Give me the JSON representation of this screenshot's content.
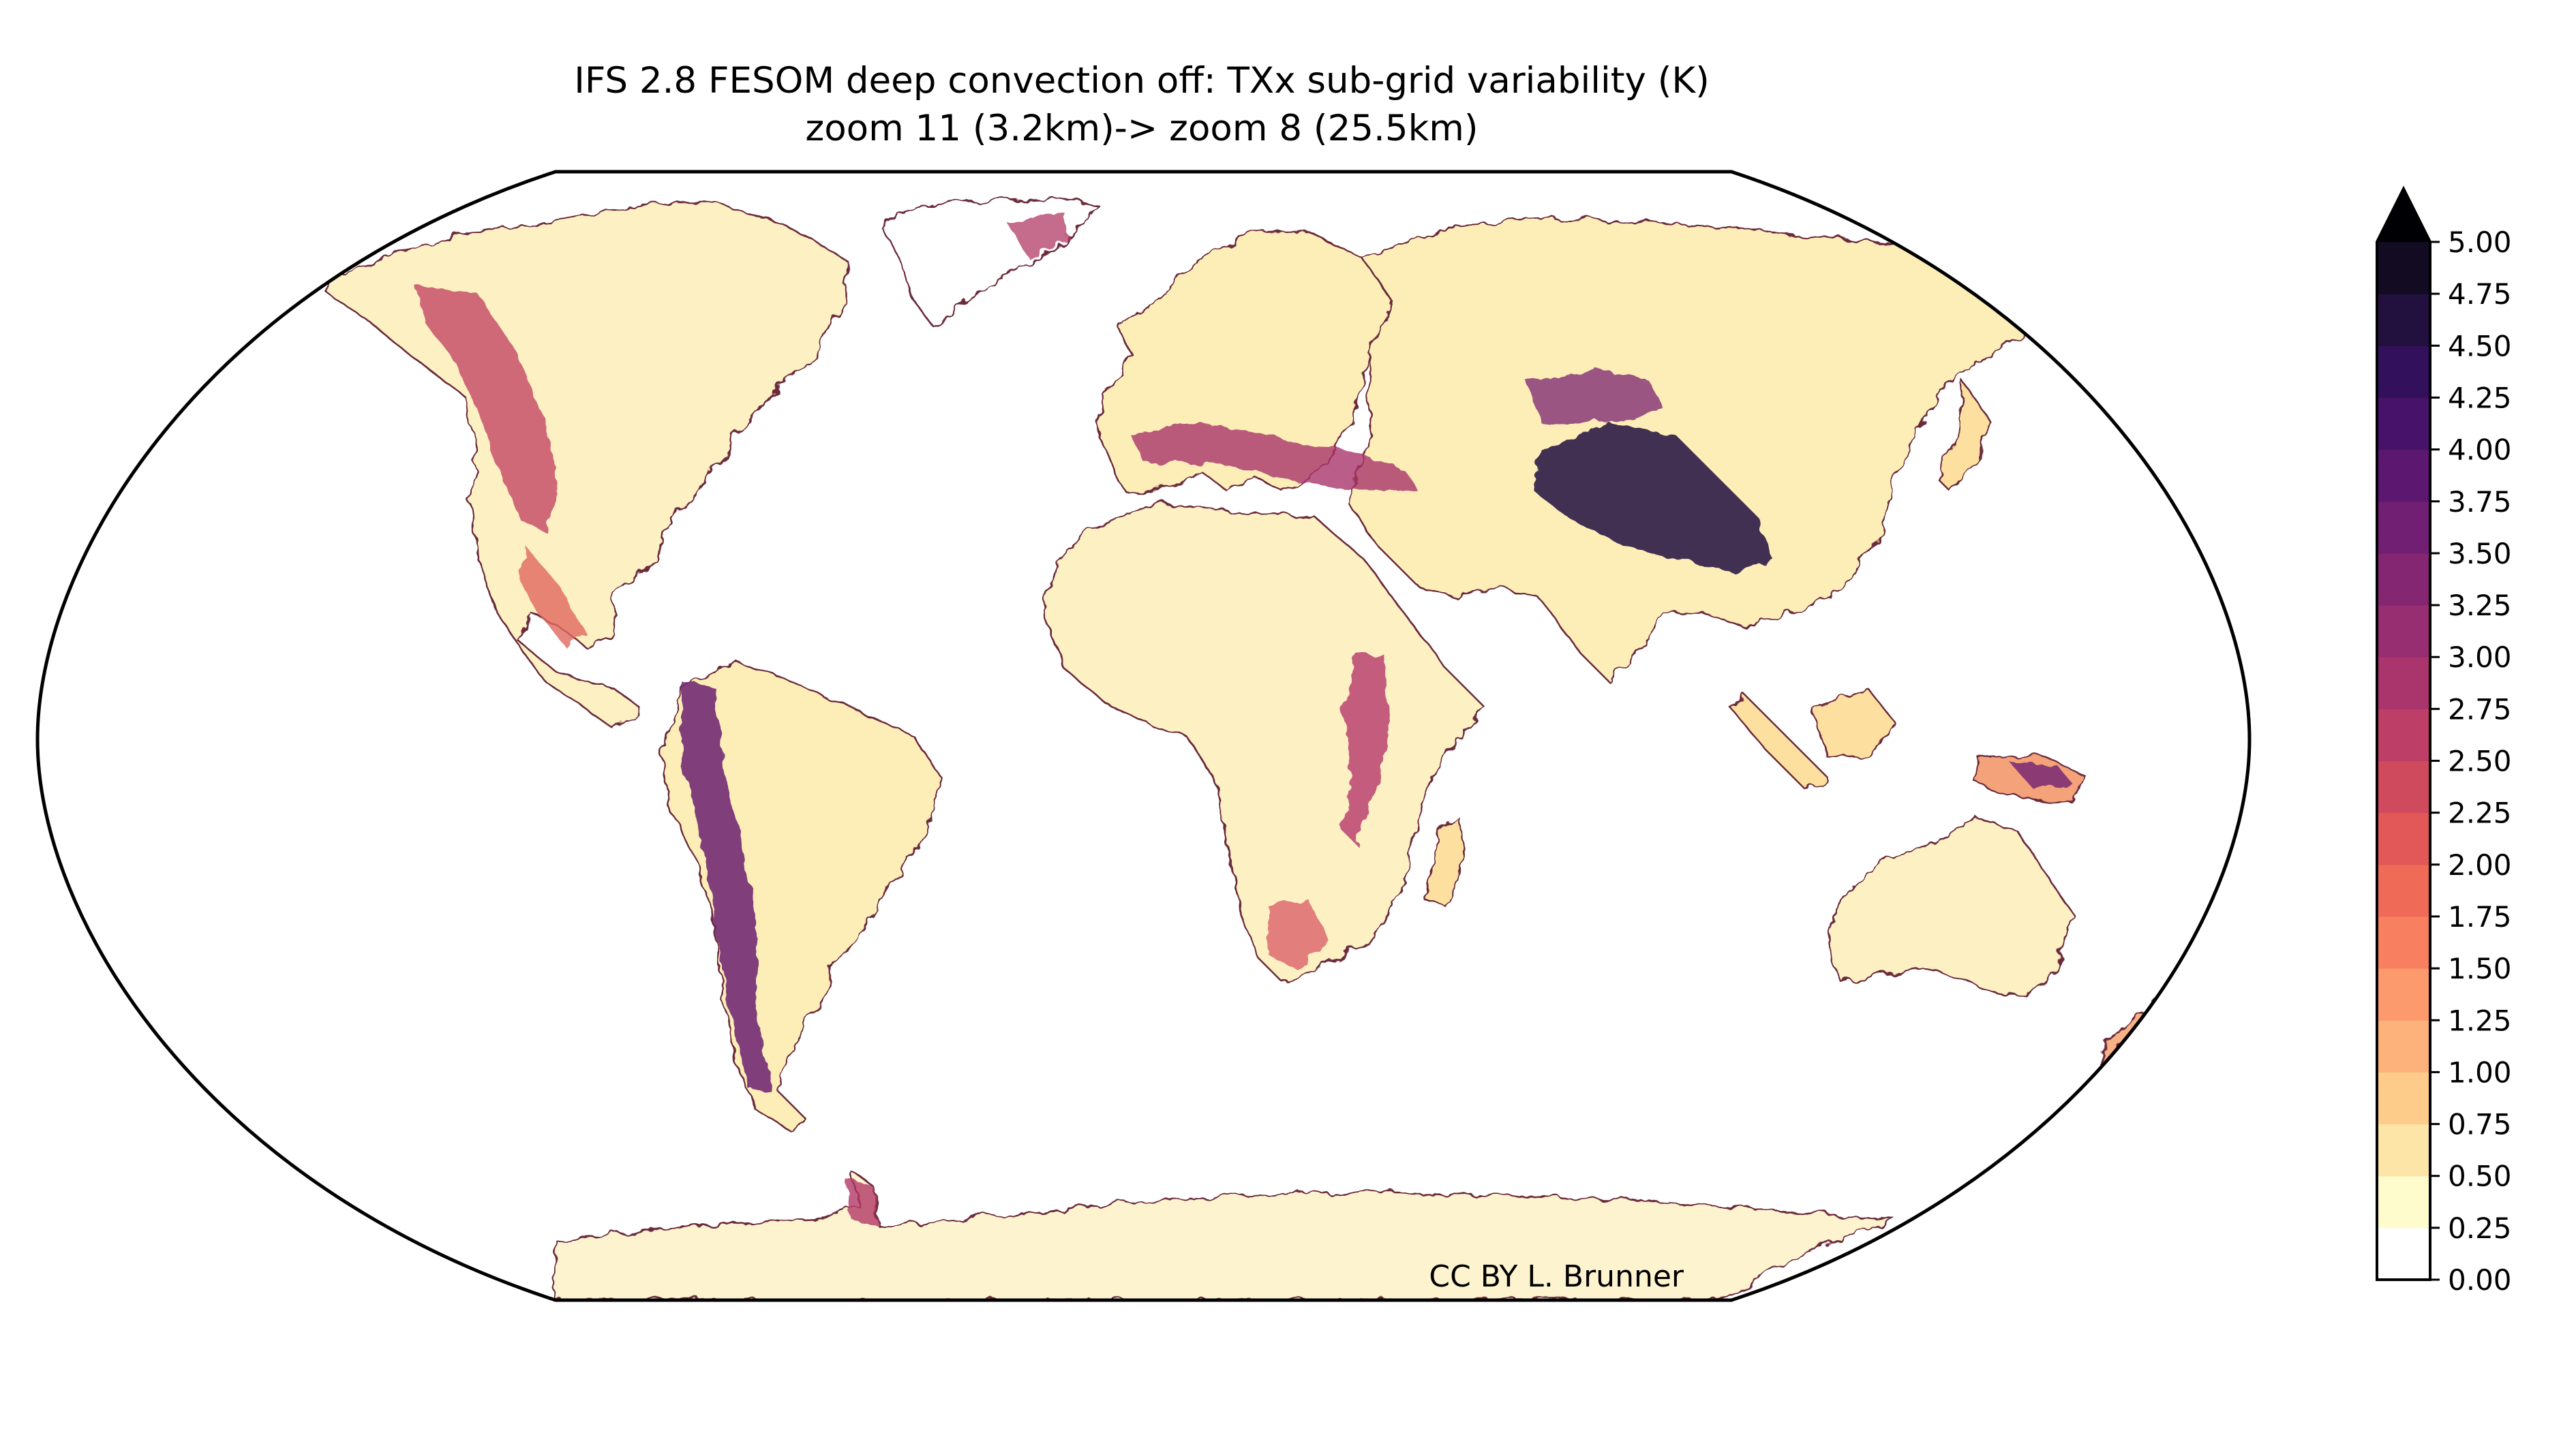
{
  "figure": {
    "title_line1": "IFS 2.8 FESOM deep convection off: TXx sub-grid variability (K)",
    "title_line2": "zoom 11 (3.2km)-> zoom 8 (25.5km)",
    "credit": "CC BY L. Brunner",
    "projection": "robinson",
    "colormap": "magma_r"
  },
  "chart_data": {
    "type": "heatmap",
    "title": "IFS 2.8 FESOM deep convection off: TXx sub-grid variability (K)",
    "subtitle": "zoom 11 (3.2km)-> zoom 8 (25.5km)",
    "colorbar": {
      "vmin": 0.0,
      "vmax": 5.0,
      "extend": "max",
      "ticks": [
        "0.00",
        "0.25",
        "0.50",
        "0.75",
        "1.00",
        "1.25",
        "1.50",
        "1.75",
        "2.00",
        "2.25",
        "2.50",
        "2.75",
        "3.00",
        "3.25",
        "3.50",
        "3.75",
        "4.00",
        "4.25",
        "4.50",
        "4.75",
        "5.00"
      ],
      "colors": [
        "#ffffff",
        "#fefccd",
        "#fde5a7",
        "#fdcc8a",
        "#fdb27b",
        "#fc996d",
        "#f88060",
        "#f06a58",
        "#e25757",
        "#d04a5e",
        "#bd3e66",
        "#aa356c",
        "#972e71",
        "#842672",
        "#701f73",
        "#5c1871",
        "#47136a",
        "#33105b",
        "#22103e",
        "#120b22"
      ],
      "extend_color": "#000004"
    },
    "high_variability_regions": [
      {
        "name": "Rocky Mountains",
        "level": 3.0
      },
      {
        "name": "Andes",
        "level": 4.0
      },
      {
        "name": "Himalaya / Tibet",
        "level": 5.0
      },
      {
        "name": "Alps",
        "level": 3.0
      },
      {
        "name": "East African Rift",
        "level": 2.75
      },
      {
        "name": "Greenland coast",
        "level": 2.5
      },
      {
        "name": "Antarctic Peninsula",
        "level": 2.5
      },
      {
        "name": "New Guinea",
        "level": 3.5
      }
    ],
    "background_land_level": 0.5,
    "ocean_level": 0.0
  }
}
